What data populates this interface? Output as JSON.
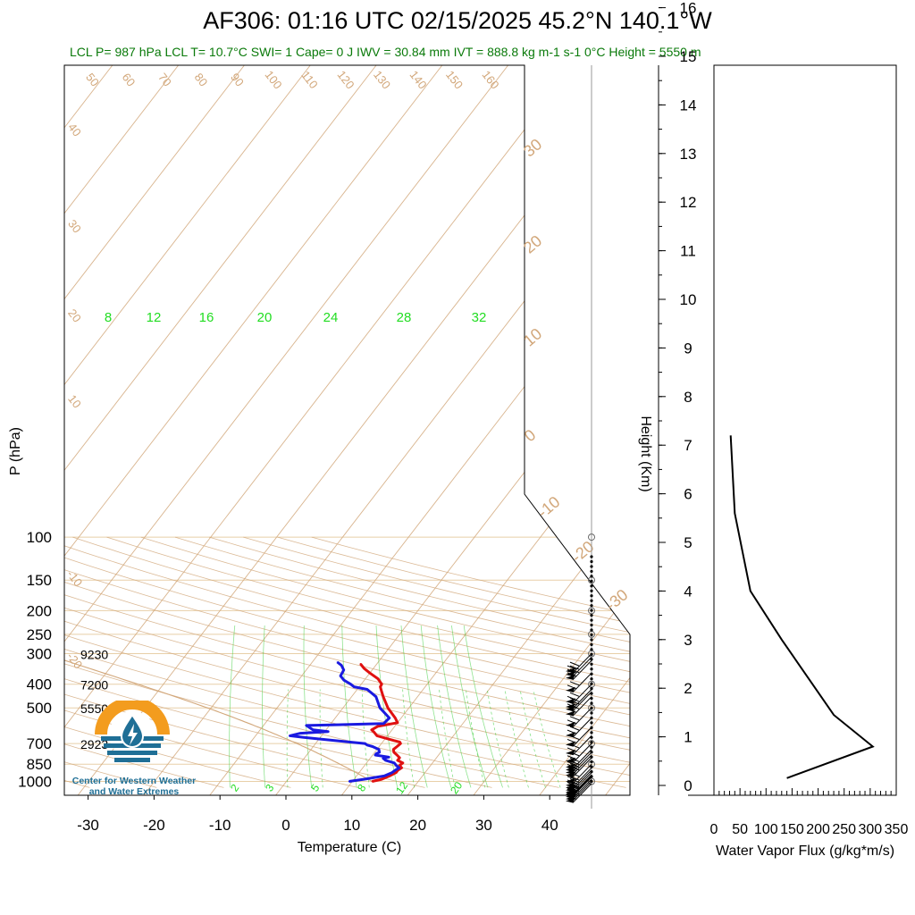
{
  "header": {
    "title": "AF306: 01:16 UTC 02/15/2025  45.2°N 140.1°W",
    "stats": "LCL P= 987 hPa  LCL T= 10.7°C  SWI= 1  Cape= 0 J  IWV = 30.84 mm  IVT = 888.8 kg m-1 s-1  0°C Height = 5550 m"
  },
  "logo": {
    "icon": "water-drop-sun-icon",
    "line1": "Center for Western Weather",
    "line2": "and Water Extremes",
    "colors": {
      "sun": "#f39c1e",
      "water": "#1f6f96"
    }
  },
  "colors": {
    "temperature": "#e01010",
    "dewpoint": "#1a1ae0",
    "isotherm": "#d2a77a",
    "mixing_ratio": "#33cc33",
    "pressure_line": "#e8cfa8"
  },
  "chart_data": [
    {
      "type": "line",
      "name": "skew-t",
      "xlabel": "Temperature (C)",
      "ylabel": "P (hPa)",
      "x_ticks": [
        "-30",
        "-20",
        "-10",
        "0",
        "10",
        "20",
        "30",
        "40"
      ],
      "y_ticks": [
        "100",
        "150",
        "200",
        "250",
        "300",
        "400",
        "500",
        "700",
        "850",
        "1000"
      ],
      "height_labels": [
        {
          "p": 300,
          "text": "9230"
        },
        {
          "p": 400,
          "text": "7200"
        },
        {
          "p": 500,
          "text": "5550"
        },
        {
          "p": 700,
          "text": "2923"
        }
      ],
      "isotherm_labels": [
        "50",
        "60",
        "70",
        "80",
        "90",
        "100",
        "110",
        "120",
        "130",
        "140",
        "150",
        "160"
      ],
      "isotherm_side_labels": [
        "40",
        "30",
        "20",
        "10",
        "-10",
        "-20"
      ],
      "isotherm_right_labels": [
        "30",
        "20",
        "10",
        "0",
        "-10",
        "-20",
        "-30"
      ],
      "mixing_ratio_top_labels": [
        "8",
        "12",
        "16",
        "20",
        "24",
        "28",
        "32"
      ],
      "mixing_ratio_bottom_labels": [
        "2",
        "3",
        "5",
        "8",
        "12",
        "20"
      ],
      "series": [
        {
          "name": "Temperature",
          "points": [
            {
              "p": 1000,
              "t": 13.0
            },
            {
              "p": 980,
              "t": 14.2
            },
            {
              "p": 950,
              "t": 15.0
            },
            {
              "p": 920,
              "t": 15.6
            },
            {
              "p": 900,
              "t": 15.6
            },
            {
              "p": 880,
              "t": 15.9
            },
            {
              "p": 860,
              "t": 15.3
            },
            {
              "p": 840,
              "t": 15.5
            },
            {
              "p": 820,
              "t": 14.4
            },
            {
              "p": 800,
              "t": 14.4
            },
            {
              "p": 780,
              "t": 13.7
            },
            {
              "p": 760,
              "t": 12.9
            },
            {
              "p": 740,
              "t": 12.5
            },
            {
              "p": 720,
              "t": 12.7
            },
            {
              "p": 700,
              "t": 12.9
            },
            {
              "p": 690,
              "t": 12.6
            },
            {
              "p": 680,
              "t": 11.5
            },
            {
              "p": 650,
              "t": 8.4
            },
            {
              "p": 630,
              "t": 7.6
            },
            {
              "p": 615,
              "t": 6.9
            },
            {
              "p": 595,
              "t": 7.4
            },
            {
              "p": 575,
              "t": 10.0
            },
            {
              "p": 550,
              "t": 9.1
            },
            {
              "p": 500,
              "t": 6.8
            },
            {
              "p": 450,
              "t": 4.8
            },
            {
              "p": 425,
              "t": 3.8
            },
            {
              "p": 410,
              "t": 3.2
            },
            {
              "p": 400,
              "t": 3.1
            },
            {
              "p": 380,
              "t": 1.9
            },
            {
              "p": 360,
              "t": 0.0
            },
            {
              "p": 345,
              "t": -1.4
            },
            {
              "p": 330,
              "t": -2.5
            }
          ]
        },
        {
          "name": "Dewpoint",
          "points": [
            {
              "p": 1000,
              "t": 9.5
            },
            {
              "p": 980,
              "t": 11.5
            },
            {
              "p": 950,
              "t": 14.2
            },
            {
              "p": 920,
              "t": 15.0
            },
            {
              "p": 900,
              "t": 15.2
            },
            {
              "p": 880,
              "t": 15.5
            },
            {
              "p": 860,
              "t": 14.8
            },
            {
              "p": 840,
              "t": 14.2
            },
            {
              "p": 820,
              "t": 12.6
            },
            {
              "p": 805,
              "t": 12.0
            },
            {
              "p": 795,
              "t": 12.7
            },
            {
              "p": 780,
              "t": 10.4
            },
            {
              "p": 770,
              "t": 10.4
            },
            {
              "p": 760,
              "t": 10.7
            },
            {
              "p": 740,
              "t": 10.3
            },
            {
              "p": 720,
              "t": 9.0
            },
            {
              "p": 710,
              "t": 8.0
            },
            {
              "p": 700,
              "t": 7.5
            },
            {
              "p": 690,
              "t": 4.9
            },
            {
              "p": 660,
              "t": -2.5
            },
            {
              "p": 650,
              "t": -4.8
            },
            {
              "p": 635,
              "t": -3.5
            },
            {
              "p": 625,
              "t": 0.5
            },
            {
              "p": 615,
              "t": -2.0
            },
            {
              "p": 590,
              "t": -3.5
            },
            {
              "p": 580,
              "t": 8.0
            },
            {
              "p": 550,
              "t": 8.2
            },
            {
              "p": 500,
              "t": 5.6
            },
            {
              "p": 450,
              "t": 3.7
            },
            {
              "p": 420,
              "t": 1.5
            },
            {
              "p": 410,
              "t": -0.8
            },
            {
              "p": 400,
              "t": -1.6
            },
            {
              "p": 385,
              "t": -3.1
            },
            {
              "p": 370,
              "t": -4.1
            },
            {
              "p": 350,
              "t": -4.3
            },
            {
              "p": 335,
              "t": -5.2
            },
            {
              "p": 325,
              "t": -6.2
            }
          ]
        }
      ],
      "moist_adiabat": {
        "name": "parcel path",
        "t_sfc": 13.0
      }
    },
    {
      "type": "line",
      "name": "water-vapor-flux-profile",
      "xlabel": "Water Vapor Flux (g/kg*m/s)",
      "ylabel": "Height (Km)",
      "x_ticks": [
        "0",
        "50",
        "100",
        "150",
        "200",
        "250",
        "300",
        "350"
      ],
      "y_ticks": [
        "0",
        "1",
        "2",
        "3",
        "4",
        "5",
        "6",
        "7",
        "8",
        "9",
        "10",
        "11",
        "12",
        "13",
        "14",
        "15",
        "16"
      ],
      "xlim": [
        0,
        350
      ],
      "ylim": [
        0,
        16
      ],
      "x": [
        140,
        305,
        230,
        130,
        70,
        40,
        32
      ],
      "y": [
        0.15,
        0.8,
        1.45,
        3.0,
        4.0,
        5.6,
        7.2
      ]
    }
  ],
  "wind_column": {
    "name": "wind-barbs",
    "barb_pressures": [
      1020,
      1000,
      980,
      960,
      950,
      940,
      920,
      900,
      880,
      850,
      800,
      780,
      760,
      740,
      700,
      650,
      600,
      550,
      500,
      450,
      430,
      420,
      400,
      360,
      320,
      310,
      300
    ],
    "calm_levels": [
      100,
      150,
      200,
      250
    ]
  }
}
